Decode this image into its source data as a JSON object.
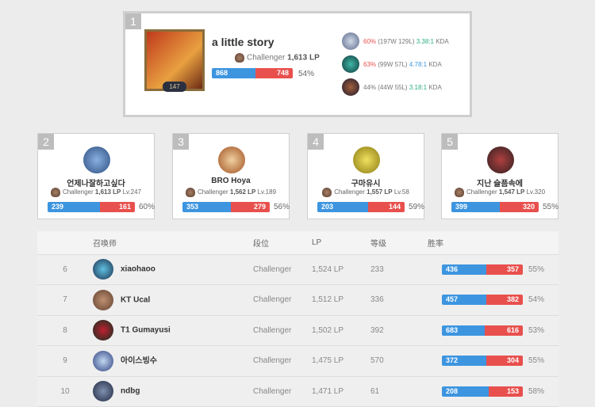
{
  "top": {
    "rank": "1",
    "name": "a little story",
    "tier": "Challenger",
    "lp": "1,613 LP",
    "level": "147",
    "wins": "868",
    "losses": "748",
    "win_fraction": 0.54,
    "winrate": "54%",
    "champions": [
      {
        "winrate": "60%",
        "record": "(197W 129L)",
        "kda": "3.38:1",
        "kda_suffix": "KDA",
        "wr_color": "#e8504d",
        "kda_color": "#2daf7f"
      },
      {
        "winrate": "63%",
        "record": "(99W 57L)",
        "kda": "4.78:1",
        "kda_suffix": "KDA",
        "wr_color": "#e8504d",
        "kda_color": "#3d95e0"
      },
      {
        "winrate": "44%",
        "record": "(44W 55L)",
        "kda": "3.18:1",
        "kda_suffix": "KDA",
        "wr_color": "#777777",
        "kda_color": "#2daf7f"
      }
    ]
  },
  "cards": [
    {
      "rank": "2",
      "name": "언제나잘하고싶다",
      "tier": "Challenger",
      "lp": "1,613 LP",
      "level": "Lv.247",
      "wins": "239",
      "losses": "161",
      "winrate": "60%"
    },
    {
      "rank": "3",
      "name": "BRO Hoya",
      "tier": "Challenger",
      "lp": "1,562 LP",
      "level": "Lv.189",
      "wins": "353",
      "losses": "279",
      "winrate": "56%"
    },
    {
      "rank": "4",
      "name": "구마유시",
      "tier": "Challenger",
      "lp": "1,557 LP",
      "level": "Lv.58",
      "wins": "203",
      "losses": "144",
      "winrate": "59%"
    },
    {
      "rank": "5",
      "name": "지난 슬픔속에",
      "tier": "Challenger",
      "lp": "1,547 LP",
      "level": "Lv.320",
      "wins": "399",
      "losses": "320",
      "winrate": "55%"
    }
  ],
  "table": {
    "headers": {
      "summoner": "召唤师",
      "tier": "段位",
      "lp": "LP",
      "level": "等级",
      "winrate": "胜率"
    },
    "rows": [
      {
        "rank": "6",
        "name": "xiaohaoo",
        "tier": "Challenger",
        "lp": "1,524 LP",
        "level": "233",
        "wins": "436",
        "losses": "357",
        "winrate": "55%"
      },
      {
        "rank": "7",
        "name": "KT Ucal",
        "tier": "Challenger",
        "lp": "1,512 LP",
        "level": "336",
        "wins": "457",
        "losses": "382",
        "winrate": "54%"
      },
      {
        "rank": "8",
        "name": "T1 Gumayusi",
        "tier": "Challenger",
        "lp": "1,502 LP",
        "level": "392",
        "wins": "683",
        "losses": "616",
        "winrate": "53%"
      },
      {
        "rank": "9",
        "name": "아이스빙수",
        "tier": "Challenger",
        "lp": "1,475 LP",
        "level": "570",
        "wins": "372",
        "losses": "304",
        "winrate": "55%"
      },
      {
        "rank": "10",
        "name": "ndbg",
        "tier": "Challenger",
        "lp": "1,471 LP",
        "level": "61",
        "wins": "208",
        "losses": "153",
        "winrate": "58%"
      }
    ]
  },
  "colors": {
    "win": "#3d95e0",
    "loss": "#e8504d"
  }
}
